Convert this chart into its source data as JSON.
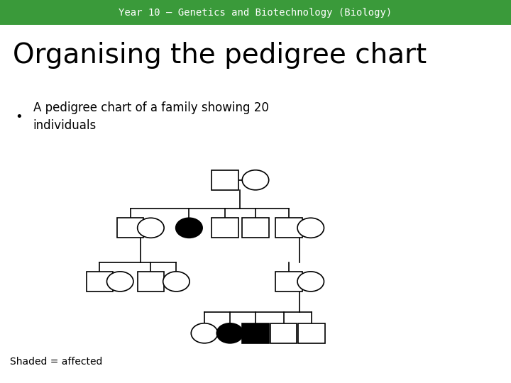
{
  "header_text": "Year 10 – Genetics and Biotechnology (Biology)",
  "header_bg": "#3a9a3a",
  "header_text_color": "#ffffff",
  "title_text": "Organising the pedigree chart",
  "body_bg": "#ffffff",
  "bullet_text": "A pedigree chart of a family showing 20\nindividuals",
  "legend_text": "Shaded = affected",
  "sym_sq": 0.022,
  "sym_ci": 0.022,
  "lw": 1.2
}
